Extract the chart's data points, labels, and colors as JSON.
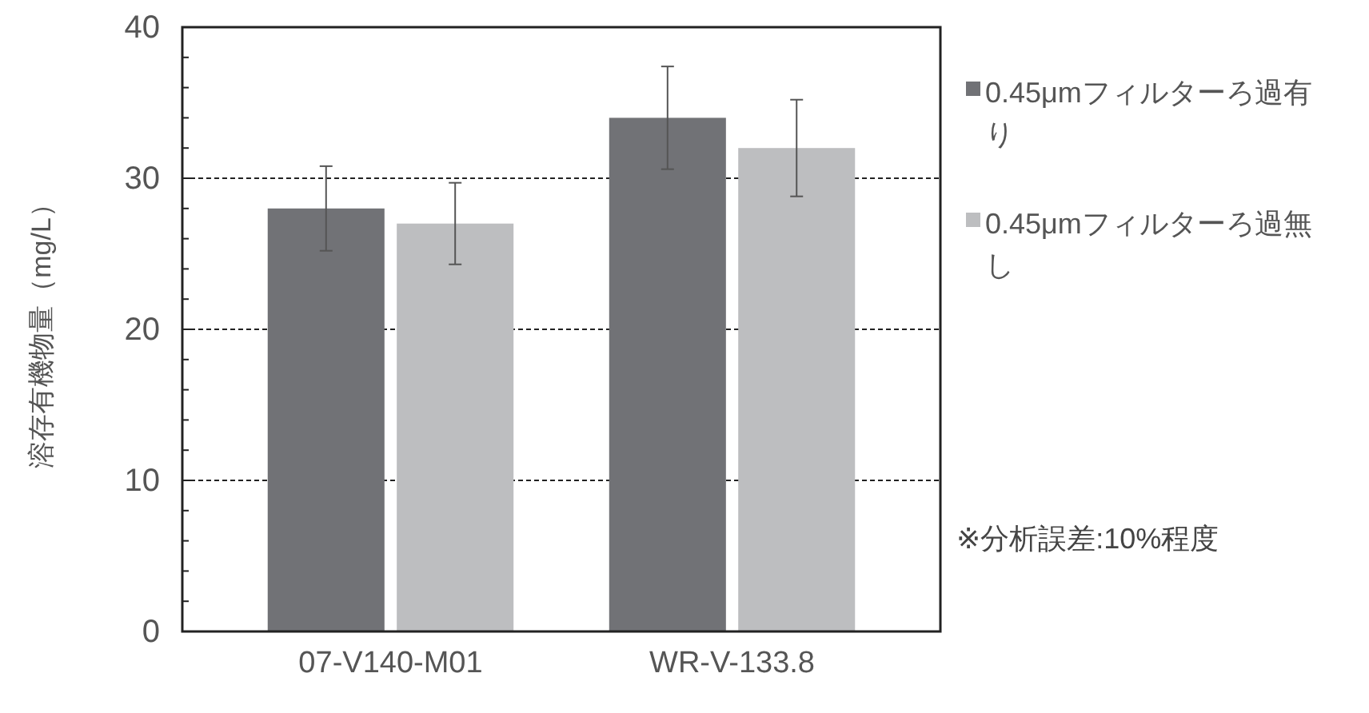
{
  "chart_data": {
    "type": "bar",
    "ylabel": "溶存有機物量（mg/L）",
    "categories": [
      "07-V140-M01",
      "WR-V-133.8"
    ],
    "series": [
      {
        "name": "0.45μmフィルターろ過有り",
        "color": "#717276",
        "values": [
          28,
          34
        ],
        "errors": [
          2.8,
          3.4
        ]
      },
      {
        "name": "0.45μmフィルターろ過無し",
        "color": "#bdbec0",
        "values": [
          27,
          32
        ],
        "errors": [
          2.7,
          3.2
        ]
      }
    ],
    "ylim": [
      0,
      40
    ],
    "yticks": [
      0,
      {
        "value": 2,
        "label": null
      },
      {
        "value": 4,
        "label": null
      },
      {
        "value": 6,
        "label": null
      },
      {
        "value": 8,
        "label": null
      },
      10,
      {
        "value": 12,
        "label": null
      },
      {
        "value": 14,
        "label": null
      },
      {
        "value": 16,
        "label": null
      },
      {
        "value": 18,
        "label": null
      },
      20,
      {
        "value": 22,
        "label": null
      },
      {
        "value": 24,
        "label": null
      },
      {
        "value": 26,
        "label": null
      },
      {
        "value": 28,
        "label": null
      },
      30,
      {
        "value": 32,
        "label": null
      },
      {
        "value": 34,
        "label": null
      },
      {
        "value": 36,
        "label": null
      },
      {
        "value": 38,
        "label": null
      },
      40
    ],
    "grid": "y",
    "legend": "right",
    "annotations": [
      "※分析誤差:10%程度"
    ]
  }
}
